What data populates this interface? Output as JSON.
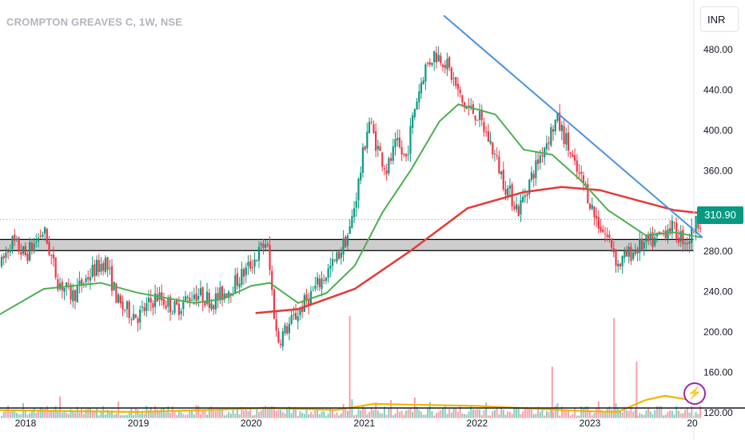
{
  "header": {
    "symbol": "CROMPTON GREAVES C, 1W, NSE",
    "currency": "INR"
  },
  "last_price": "310.90",
  "colors": {
    "up": "#089981",
    "down": "#f23645",
    "ma_fast": "#4caf50",
    "ma_slow": "#e53935",
    "trendline": "#4a90e2",
    "volume_ma": "#f4b400",
    "zone": "#c4c4c4"
  },
  "alert_icon": "lightning-bolt-icon",
  "chart_data": {
    "type": "candlestick",
    "y_axis": {
      "ticks": [
        "480.00",
        "440.00",
        "400.00",
        "360.00",
        "320.00",
        "280.00",
        "240.00",
        "200.00",
        "160.00",
        "120.00"
      ]
    },
    "x_axis": {
      "ticks": [
        "2018",
        "2019",
        "2020",
        "2021",
        "2022",
        "2023",
        "20"
      ]
    },
    "price_path": [
      [
        "2017-10-01",
        255
      ],
      [
        "2017-11-15",
        290
      ],
      [
        "2018-01-01",
        275
      ],
      [
        "2018-03-01",
        300
      ],
      [
        "2018-04-15",
        250
      ],
      [
        "2018-06-01",
        235
      ],
      [
        "2018-08-01",
        258
      ],
      [
        "2018-09-15",
        270
      ],
      [
        "2018-11-01",
        225
      ],
      [
        "2019-01-01",
        215
      ],
      [
        "2019-03-01",
        235
      ],
      [
        "2019-05-01",
        222
      ],
      [
        "2019-07-01",
        238
      ],
      [
        "2019-09-01",
        230
      ],
      [
        "2019-11-01",
        245
      ],
      [
        "2019-12-15",
        260
      ],
      [
        "2020-01-20",
        275
      ],
      [
        "2020-02-20",
        290
      ],
      [
        "2020-03-25",
        190
      ],
      [
        "2020-05-01",
        205
      ],
      [
        "2020-06-15",
        225
      ],
      [
        "2020-08-01",
        245
      ],
      [
        "2020-10-01",
        270
      ],
      [
        "2020-11-15",
        300
      ],
      [
        "2020-12-15",
        350
      ],
      [
        "2021-01-15",
        410
      ],
      [
        "2021-02-15",
        380
      ],
      [
        "2021-03-15",
        360
      ],
      [
        "2021-04-15",
        385
      ],
      [
        "2021-05-15",
        370
      ],
      [
        "2021-06-15",
        425
      ],
      [
        "2021-07-15",
        460
      ],
      [
        "2021-08-15",
        475
      ],
      [
        "2021-09-15",
        470
      ],
      [
        "2021-10-15",
        450
      ],
      [
        "2021-11-15",
        425
      ],
      [
        "2022-01-01",
        415
      ],
      [
        "2022-02-15",
        385
      ],
      [
        "2022-04-01",
        345
      ],
      [
        "2022-05-15",
        320
      ],
      [
        "2022-06-15",
        345
      ],
      [
        "2022-08-01",
        380
      ],
      [
        "2022-09-15",
        410
      ],
      [
        "2022-10-15",
        390
      ],
      [
        "2022-11-15",
        360
      ],
      [
        "2022-12-15",
        345
      ],
      [
        "2023-01-15",
        315
      ],
      [
        "2023-02-15",
        298
      ],
      [
        "2023-03-15",
        285
      ],
      [
        "2023-04-01",
        265
      ],
      [
        "2023-05-01",
        275
      ],
      [
        "2023-06-15",
        285
      ],
      [
        "2023-08-01",
        290
      ],
      [
        "2023-09-15",
        305
      ],
      [
        "2023-10-15",
        295
      ],
      [
        "2023-11-15",
        290
      ],
      [
        "2023-12-15",
        310
      ],
      [
        "2023-12-31",
        310.9
      ]
    ],
    "sma_fast": [
      [
        "2017-09-01",
        210
      ],
      [
        "2018-03-01",
        242
      ],
      [
        "2018-09-01",
        248
      ],
      [
        "2019-01-01",
        238
      ],
      [
        "2019-07-01",
        228
      ],
      [
        "2019-10-01",
        232
      ],
      [
        "2020-01-01",
        245
      ],
      [
        "2020-03-01",
        248
      ],
      [
        "2020-06-01",
        228
      ],
      [
        "2020-09-01",
        238
      ],
      [
        "2020-12-01",
        265
      ],
      [
        "2021-03-01",
        318
      ],
      [
        "2021-06-01",
        360
      ],
      [
        "2021-09-01",
        408
      ],
      [
        "2021-11-01",
        425
      ],
      [
        "2022-03-01",
        415
      ],
      [
        "2022-06-01",
        380
      ],
      [
        "2022-09-01",
        375
      ],
      [
        "2022-12-01",
        350
      ],
      [
        "2023-03-01",
        320
      ],
      [
        "2023-07-01",
        295
      ],
      [
        "2023-10-01",
        298
      ],
      [
        "2023-12-31",
        293
      ]
    ],
    "sma_slow": [
      [
        "2020-01-15",
        218
      ],
      [
        "2020-06-01",
        222
      ],
      [
        "2020-12-01",
        242
      ],
      [
        "2021-06-01",
        280
      ],
      [
        "2021-12-01",
        322
      ],
      [
        "2022-06-01",
        338
      ],
      [
        "2022-10-01",
        343
      ],
      [
        "2023-02-01",
        340
      ],
      [
        "2023-06-01",
        330
      ],
      [
        "2023-10-01",
        320
      ],
      [
        "2023-12-31",
        317
      ]
    ],
    "trendline": [
      [
        "2021-09-15",
        513
      ],
      [
        "2023-12-31",
        293
      ]
    ],
    "support_zone": [
      280,
      291
    ],
    "volume_ma": [
      [
        "2017-09-01",
        122
      ],
      [
        "2019-01-01",
        120
      ],
      [
        "2020-03-01",
        124
      ],
      [
        "2020-10-01",
        122
      ],
      [
        "2021-02-01",
        128
      ],
      [
        "2022-01-01",
        126
      ],
      [
        "2022-12-01",
        121
      ],
      [
        "2023-04-01",
        120
      ],
      [
        "2023-07-01",
        132
      ],
      [
        "2023-09-01",
        136
      ],
      [
        "2023-12-31",
        130
      ]
    ],
    "volume_spikes": [
      [
        "2020-11-15",
        215
      ],
      [
        "2022-09-01",
        165
      ],
      [
        "2023-03-20",
        213
      ],
      [
        "2023-06-01",
        170
      ]
    ],
    "volume_base": 114
  }
}
